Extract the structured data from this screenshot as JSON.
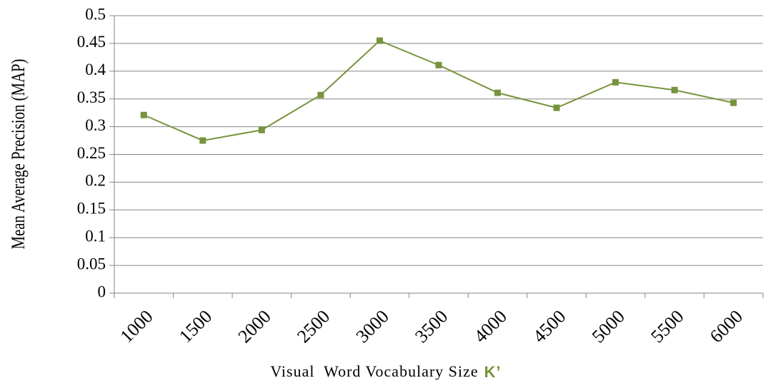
{
  "chart_data": {
    "type": "line",
    "y_label": "Mean Average Precision (MAP)",
    "x_label": "Visual  Word Vocabulary Size",
    "x_label_symbol": "K’",
    "categories": [
      "1000",
      "1500",
      "2000",
      "2500",
      "3000",
      "3500",
      "4000",
      "4500",
      "5000",
      "5500",
      "6000"
    ],
    "series": [
      {
        "color": "#77933c",
        "values": [
          0.321,
          0.275,
          0.294,
          0.357,
          0.455,
          0.411,
          0.361,
          0.334,
          0.38,
          0.366,
          0.343
        ]
      }
    ],
    "ylim": [
      0,
      0.5
    ],
    "yticks": [
      0,
      0.05,
      0.1,
      0.15,
      0.2,
      0.25,
      0.3,
      0.35,
      0.4,
      0.45,
      0.5
    ],
    "grid": true
  }
}
